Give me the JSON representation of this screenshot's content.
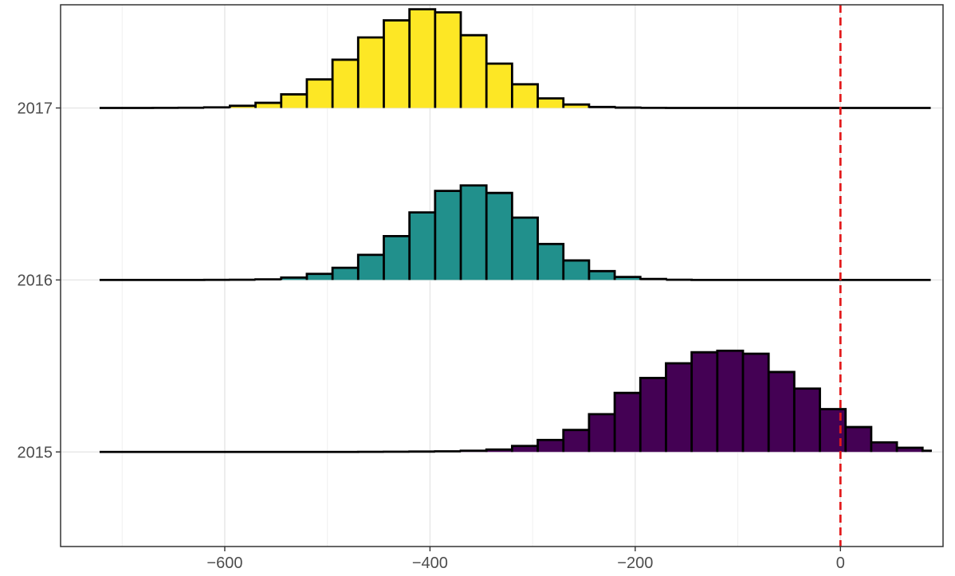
{
  "chart_data": {
    "type": "ridgeline-histogram",
    "title": "",
    "xlabel": "",
    "ylabel": "",
    "xlim": [
      -760,
      100
    ],
    "ylim": [
      2014.45,
      2017.6
    ],
    "grid": true,
    "legend": "none",
    "x_ticks": [
      -600,
      -400,
      -200,
      0
    ],
    "x_tick_labels": [
      "−600",
      "−400",
      "−200",
      "0"
    ],
    "y_ticks": [
      2015,
      2016,
      2017
    ],
    "y_tick_labels": [
      "2015",
      "2016",
      "2017"
    ],
    "reference_line": {
      "x": 0,
      "style": "dashed",
      "color": "#e31a1c"
    },
    "bin_width": 25,
    "bins_start": -722,
    "bins_end": 88,
    "series": [
      {
        "name": "2015",
        "baseline": 2015,
        "color": "#440154",
        "bins": [
          {
            "x0": -470,
            "x1": -445,
            "h": 0.001
          },
          {
            "x0": -445,
            "x1": -420,
            "h": 0.002
          },
          {
            "x0": -420,
            "x1": -395,
            "h": 0.003
          },
          {
            "x0": -395,
            "x1": -370,
            "h": 0.005
          },
          {
            "x0": -370,
            "x1": -345,
            "h": 0.01
          },
          {
            "x0": -345,
            "x1": -320,
            "h": 0.02
          },
          {
            "x0": -320,
            "x1": -295,
            "h": 0.05
          },
          {
            "x0": -295,
            "x1": -270,
            "h": 0.1
          },
          {
            "x0": -270,
            "x1": -245,
            "h": 0.184
          },
          {
            "x0": -245,
            "x1": -220,
            "h": 0.316
          },
          {
            "x0": -220,
            "x1": -195,
            "h": 0.494
          },
          {
            "x0": -195,
            "x1": -170,
            "h": 0.619
          },
          {
            "x0": -170,
            "x1": -145,
            "h": 0.742
          },
          {
            "x0": -145,
            "x1": -120,
            "h": 0.834
          },
          {
            "x0": -120,
            "x1": -95,
            "h": 0.847
          },
          {
            "x0": -95,
            "x1": -70,
            "h": 0.822
          },
          {
            "x0": -70,
            "x1": -45,
            "h": 0.669
          },
          {
            "x0": -45,
            "x1": -20,
            "h": 0.53
          },
          {
            "x0": -20,
            "x1": 5,
            "h": 0.358
          },
          {
            "x0": 5,
            "x1": 30,
            "h": 0.208
          },
          {
            "x0": 30,
            "x1": 55,
            "h": 0.08
          },
          {
            "x0": 55,
            "x1": 80,
            "h": 0.035
          },
          {
            "x0": 80,
            "x1": 88,
            "h": 0.01
          }
        ]
      },
      {
        "name": "2016",
        "baseline": 2016,
        "color": "#21908c",
        "bins": [
          {
            "x0": -620,
            "x1": -595,
            "h": 0.001
          },
          {
            "x0": -595,
            "x1": -570,
            "h": 0.002
          },
          {
            "x0": -570,
            "x1": -545,
            "h": 0.005
          },
          {
            "x0": -545,
            "x1": -520,
            "h": 0.02
          },
          {
            "x0": -520,
            "x1": -495,
            "h": 0.051
          },
          {
            "x0": -495,
            "x1": -470,
            "h": 0.102
          },
          {
            "x0": -470,
            "x1": -445,
            "h": 0.21
          },
          {
            "x0": -445,
            "x1": -420,
            "h": 0.367
          },
          {
            "x0": -420,
            "x1": -395,
            "h": 0.565
          },
          {
            "x0": -395,
            "x1": -370,
            "h": 0.745
          },
          {
            "x0": -370,
            "x1": -345,
            "h": 0.791
          },
          {
            "x0": -345,
            "x1": -320,
            "h": 0.728
          },
          {
            "x0": -320,
            "x1": -295,
            "h": 0.522
          },
          {
            "x0": -295,
            "x1": -270,
            "h": 0.301
          },
          {
            "x0": -270,
            "x1": -245,
            "h": 0.163
          },
          {
            "x0": -245,
            "x1": -220,
            "h": 0.074
          },
          {
            "x0": -220,
            "x1": -195,
            "h": 0.025
          },
          {
            "x0": -195,
            "x1": -170,
            "h": 0.008
          },
          {
            "x0": -170,
            "x1": -145,
            "h": 0.002
          }
        ]
      },
      {
        "name": "2017",
        "baseline": 2017,
        "color": "#fde725",
        "bins": [
          {
            "x0": -670,
            "x1": -645,
            "h": 0.001
          },
          {
            "x0": -645,
            "x1": -620,
            "h": 0.002
          },
          {
            "x0": -620,
            "x1": -595,
            "h": 0.005
          },
          {
            "x0": -595,
            "x1": -570,
            "h": 0.018
          },
          {
            "x0": -570,
            "x1": -545,
            "h": 0.043
          },
          {
            "x0": -545,
            "x1": -520,
            "h": 0.114
          },
          {
            "x0": -520,
            "x1": -495,
            "h": 0.239
          },
          {
            "x0": -495,
            "x1": -470,
            "h": 0.404
          },
          {
            "x0": -470,
            "x1": -445,
            "h": 0.59
          },
          {
            "x0": -445,
            "x1": -420,
            "h": 0.733
          },
          {
            "x0": -420,
            "x1": -395,
            "h": 0.826
          },
          {
            "x0": -395,
            "x1": -370,
            "h": 0.8
          },
          {
            "x0": -370,
            "x1": -345,
            "h": 0.609
          },
          {
            "x0": -345,
            "x1": -320,
            "h": 0.371
          },
          {
            "x0": -320,
            "x1": -295,
            "h": 0.198
          },
          {
            "x0": -295,
            "x1": -270,
            "h": 0.08
          },
          {
            "x0": -270,
            "x1": -245,
            "h": 0.029
          },
          {
            "x0": -245,
            "x1": -220,
            "h": 0.008
          },
          {
            "x0": -220,
            "x1": -195,
            "h": 0.003
          },
          {
            "x0": -195,
            "x1": -170,
            "h": 0.001
          }
        ]
      }
    ]
  }
}
